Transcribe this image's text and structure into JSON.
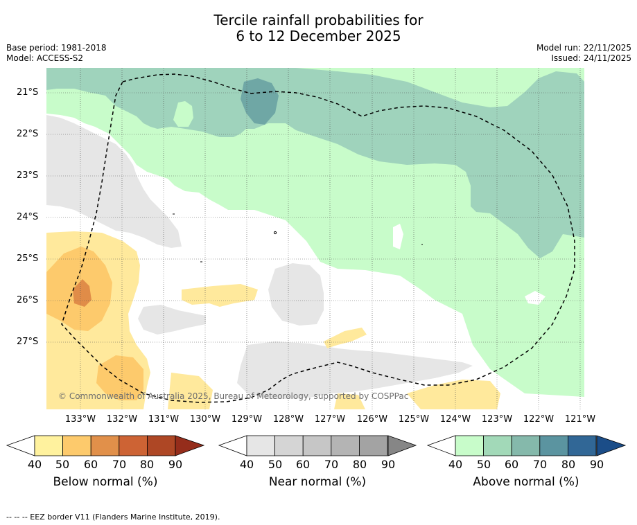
{
  "title": {
    "line1": "Tercile rainfall probabilities for",
    "line2": "6 to 12 December 2025"
  },
  "meta": {
    "base_period": "Base period: 1981-2018",
    "model": "Model: ACCESS-S2",
    "model_run": "Model run: 22/11/2025",
    "issued": "Issued: 24/11/2025"
  },
  "map": {
    "latitude_labels": [
      "21°S",
      "22°S",
      "23°S",
      "24°S",
      "25°S",
      "26°S",
      "27°S"
    ],
    "longitude_labels": [
      "133°W",
      "132°W",
      "131°W",
      "130°W",
      "129°W",
      "128°W",
      "127°W",
      "126°W",
      "125°W",
      "124°W",
      "123°W",
      "122°W",
      "121°W"
    ],
    "credit": "© Commonwealth of Australia 2025, Bureau of Meteorology, supported by COSPPac",
    "colors": {
      "ocean": "#ffffff",
      "above_40": "#c8fcca",
      "above_50": "#9fd3bc",
      "above_60": "#6fa7a5",
      "near_40": "#e6e6e6",
      "below_40": "#ffe99c",
      "below_50": "#fdca6c",
      "below_60": "#e08c48"
    }
  },
  "colorbars": {
    "below": {
      "title": "Below normal (%)",
      "ticks": [
        "40",
        "50",
        "60",
        "70",
        "80",
        "90"
      ],
      "colors": [
        "#fff29e",
        "#fdca6c",
        "#e1904a",
        "#cd6334",
        "#ae4725",
        "#952d1b"
      ]
    },
    "near": {
      "title": "Near normal (%)",
      "ticks": [
        "40",
        "50",
        "60",
        "70",
        "80",
        "90"
      ],
      "colors": [
        "#e6e6e6",
        "#d5d5d5",
        "#c6c6c6",
        "#b4b4b4",
        "#a3a3a3",
        "#868686"
      ]
    },
    "above": {
      "title": "Above normal (%)",
      "ticks": [
        "40",
        "50",
        "60",
        "70",
        "80",
        "90"
      ],
      "colors": [
        "#c8fcca",
        "#a2d9b8",
        "#85b9ab",
        "#5b94a0",
        "#316796",
        "#1b4d88"
      ]
    }
  },
  "footer": "--  --  -- EEZ border V11 (Flanders Marine Institute, 2019)."
}
